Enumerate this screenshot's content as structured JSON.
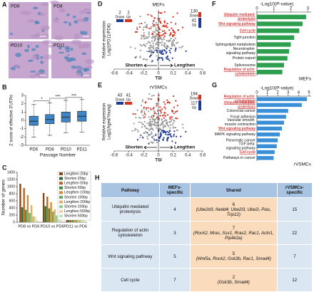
{
  "panel_labels": [
    "A",
    "B",
    "C",
    "D",
    "E",
    "F",
    "G",
    "H"
  ],
  "panel_A": {
    "images": [
      "PD6",
      "PD8",
      "PD10",
      "PD11"
    ]
  },
  "chart_data": [
    {
      "type": "box",
      "y_label": "Z score of effective 3'UTRs",
      "x_label": "Passage Number",
      "categories": [
        "PD6",
        "PD8",
        "PD10",
        "PD11"
      ],
      "boxes": [
        {
          "whislo": -2.0,
          "q1": -0.6,
          "med": -0.1,
          "q3": 0.5,
          "whishi": 1.9
        },
        {
          "whislo": -1.8,
          "q1": -0.4,
          "med": 0.1,
          "q3": 0.7,
          "whishi": 2.1
        },
        {
          "whislo": -1.5,
          "q1": -0.2,
          "med": 0.4,
          "q3": 1.0,
          "whishi": 2.4
        },
        {
          "whislo": -1.4,
          "q1": -0.1,
          "med": 0.5,
          "q3": 1.1,
          "whishi": 2.5
        }
      ],
      "color": "#3d85c6",
      "ylim": [
        -3,
        3
      ],
      "yticks": [
        -3,
        -2,
        -1,
        0,
        1,
        2,
        3
      ],
      "significance": [
        "*",
        "***",
        "***"
      ]
    },
    {
      "type": "grouped_bar",
      "y_label": "Number of genes",
      "categories": [
        "PD8 vs PD6",
        "PD10 vs PD6",
        "PD11 vs PD6"
      ],
      "series": [
        {
          "name": "Lengthen 20bp",
          "color": "#8b4513",
          "values": [
            1080,
            820,
            640
          ]
        },
        {
          "name": "Shorten 20bp",
          "color": "#2e6b2e",
          "values": [
            420,
            450,
            360
          ]
        },
        {
          "name": "Lengthen 50bp",
          "color": "#b8651b",
          "values": [
            960,
            720,
            560
          ]
        },
        {
          "name": "Shorten 50bp",
          "color": "#3f8f3f",
          "values": [
            350,
            390,
            300
          ]
        },
        {
          "name": "Lengthen 100bp",
          "color": "#d98a2b",
          "values": [
            760,
            560,
            440
          ]
        },
        {
          "name": "Shorten 100bp",
          "color": "#5fae5f",
          "values": [
            260,
            300,
            230
          ]
        },
        {
          "name": "Lengthen 200bp",
          "color": "#e8ad5c",
          "values": [
            480,
            360,
            280
          ]
        },
        {
          "name": "Shorten 200bp",
          "color": "#8ccc8c",
          "values": [
            160,
            190,
            150
          ]
        },
        {
          "name": "Lengthen 500bp",
          "color": "#f3d19a",
          "values": [
            170,
            120,
            100
          ]
        },
        {
          "name": "Shorten 500bp",
          "color": "#bfe3bf",
          "values": [
            60,
            70,
            55
          ]
        }
      ],
      "ylim": [
        0,
        1400
      ],
      "yticks": [
        0,
        200,
        400,
        600,
        800,
        1000,
        1200,
        1400
      ]
    },
    {
      "type": "volcano",
      "title": "MEFs",
      "y_label": "Relative expression",
      "y_label2": "Log2(PD11/PD6)",
      "x_label": "TSI",
      "xlim": [
        -0.6,
        0.6
      ],
      "xticks": [
        -0.6,
        -0.4,
        -0.2,
        0,
        0.2,
        0.4,
        0.6
      ],
      "left_label": "Shorten",
      "right_label": "Lengthen",
      "count_labels": [
        "Down",
        "Up"
      ],
      "left_counts": [
        2,
        2
      ],
      "right_counts": [
        130,
        41
      ],
      "up_color": "#d7301f",
      "down_color": "#1f3a93"
    },
    {
      "type": "volcano",
      "title": "rVSMCs",
      "y_label": "Relative expression",
      "y_label2": "Log2(Aged/Young)",
      "x_label": "TSI",
      "xlim": [
        -0.6,
        0.6
      ],
      "xticks": [
        -0.6,
        -0.4,
        -0.2,
        0,
        0.2,
        0.4,
        0.6
      ],
      "left_label": "Shorten",
      "right_label": "Lengthen",
      "count_labels": [
        "Down",
        "Up"
      ],
      "left_counts": [
        43,
        41
      ],
      "right_counts": [
        194,
        117
      ],
      "up_color": "#d7301f",
      "down_color": "#1f3a93"
    },
    {
      "type": "hbar",
      "title": "-Log10(P-value)",
      "note": "MEFs",
      "categories": [
        "Ubiquitin mediated proteolysis",
        "Wnt signaling pathway",
        "Cell cycle",
        "Tight junction",
        "Sphingolipid metabolism",
        "Neurotrophin signaling pathway",
        "Protein export",
        "Spliceosome",
        "Regulation of actin cytoskeleton"
      ],
      "values": [
        2.9,
        2.7,
        2.5,
        2.2,
        2.0,
        1.9,
        1.8,
        1.6,
        1.5
      ],
      "highlight": [
        true,
        true,
        true,
        false,
        false,
        false,
        false,
        false,
        true
      ],
      "color": "#2e9e4f",
      "highlight_color": "#c00000",
      "xlim": [
        0,
        3.2
      ],
      "xticks": [
        0,
        1,
        2,
        3
      ]
    },
    {
      "type": "hbar",
      "title": "-Log10(P-value)",
      "note": "rVSMCs",
      "categories": [
        "Regulation of actin cytoskeleton",
        "Ubiquitin mediated proteolysis",
        "Colorectal cancer",
        "Focal adhesion",
        "Vascular smooth muscle contraction",
        "Wnt signaling pathway",
        "MAPK signaling pathway",
        "Pancreatic cancer",
        "TGF-beta signaling pathway",
        "Cell cycle",
        "Pathways in cancer"
      ],
      "values": [
        4.8,
        4.3,
        3.0,
        2.8,
        2.6,
        2.4,
        2.2,
        2.0,
        1.9,
        1.7,
        1.6
      ],
      "highlight": [
        true,
        true,
        false,
        false,
        false,
        true,
        false,
        false,
        false,
        true,
        false
      ],
      "color": "#3a8fd6",
      "highlight_color": "#c00000",
      "xlim": [
        0,
        5.2
      ],
      "xticks": [
        0,
        1,
        2,
        3,
        4,
        5
      ]
    }
  ],
  "table": {
    "columns": [
      "Pathway",
      "MEFs-specific",
      "Shared",
      "rVSMCs-specific"
    ],
    "rows": [
      {
        "pathway": "Ubiquitin mediated proteolysis",
        "mefs": 4,
        "shared": {
          "count": 6,
          "genes": "(Ube2d3, Nedd4, Ube2l3, Ube2i, Pias, Trip12)"
        },
        "rvsmcs": 15
      },
      {
        "pathway": "Regulation of actin cytoskeleton",
        "mefs": 3,
        "shared": {
          "count": 7,
          "genes": "(Rock2, Mras, Ssx1, Rras2, Rac1, Actn1, Pip4k2a)"
        },
        "rvsmcs": 22
      },
      {
        "pathway": "Wnt signaling pathway",
        "mefs": 5,
        "shared": {
          "count": 5,
          "genes": "(Wnt5a, Rock2, Gsk3b, Rac1, Smad4)"
        },
        "rvsmcs": 7
      },
      {
        "pathway": "Cell cycle",
        "mefs": 7,
        "shared": {
          "count": 2,
          "genes": "(Gsk3b, Smad4)"
        },
        "rvsmcs": 12
      }
    ]
  }
}
